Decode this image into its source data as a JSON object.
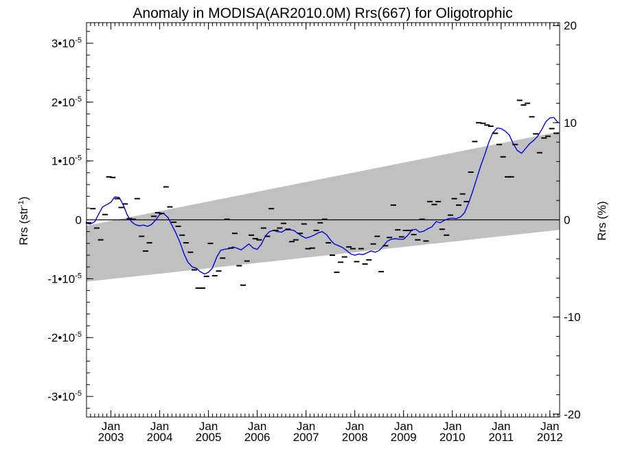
{
  "chart_data": {
    "type": "scatter",
    "title": "Anomaly in MODISA(AR2010.0M) Rrs(667) for Oligotrophic",
    "ylabel_left": {
      "main": "Rrs (str",
      "sup": "-1",
      "close": ")"
    },
    "ylabel_right": "Rrs (%)",
    "left_axis": {
      "ylim": [
        -3.35e-05,
        3.35e-05
      ],
      "ticks": [
        {
          "value": -3e-05,
          "mant": "-3",
          "exp": "-5"
        },
        {
          "value": -2e-05,
          "mant": "-2",
          "exp": "-5"
        },
        {
          "value": -1e-05,
          "mant": "-1",
          "exp": "-5"
        },
        {
          "value": 0,
          "label": "0"
        },
        {
          "value": 1e-05,
          "mant": "1",
          "exp": "-5"
        },
        {
          "value": 2e-05,
          "mant": "2",
          "exp": "-5"
        },
        {
          "value": 3e-05,
          "mant": "3",
          "exp": "-5"
        }
      ]
    },
    "right_axis": {
      "ylim": [
        -20.3,
        20.3
      ],
      "ticks": [
        {
          "value": -20,
          "label": "-20"
        },
        {
          "value": -10,
          "label": "-10"
        },
        {
          "value": 0,
          "label": "0"
        },
        {
          "value": 10,
          "label": "10"
        },
        {
          "value": 20,
          "label": "20"
        }
      ]
    },
    "xlim": [
      2002.5,
      2012.2
    ],
    "x_ticks": [
      {
        "value": 2003.0,
        "month": "Jan",
        "year": "2003"
      },
      {
        "value": 2004.0,
        "month": "Jan",
        "year": "2004"
      },
      {
        "value": 2005.0,
        "month": "Jan",
        "year": "2005"
      },
      {
        "value": 2006.0,
        "month": "Jan",
        "year": "2006"
      },
      {
        "value": 2007.0,
        "month": "Jan",
        "year": "2007"
      },
      {
        "value": 2008.0,
        "month": "Jan",
        "year": "2008"
      },
      {
        "value": 2009.0,
        "month": "Jan",
        "year": "2009"
      },
      {
        "value": 2010.0,
        "month": "Jan",
        "year": "2010"
      },
      {
        "value": 2011.0,
        "month": "Jan",
        "year": "2011"
      },
      {
        "value": 2012.0,
        "month": "Jan",
        "year": "2012"
      }
    ],
    "x_minor_step": 0.0833333,
    "zero_line": true,
    "band": {
      "color": "#c0c0c0",
      "x": [
        2002.5,
        2012.2
      ],
      "upper": [
        -1e-06,
        1.5e-05
      ],
      "lower": [
        -1.05e-05,
        -1.7e-06
      ]
    },
    "series": [
      {
        "kind": "markers",
        "color": "#000000",
        "x": [
          2002.54,
          2002.63,
          2002.71,
          2002.79,
          2002.88,
          2002.96,
          2003.04,
          2003.13,
          2003.21,
          2003.29,
          2003.38,
          2003.46,
          2003.54,
          2003.63,
          2003.71,
          2003.79,
          2003.88,
          2003.96,
          2004.04,
          2004.13,
          2004.21,
          2004.29,
          2004.38,
          2004.46,
          2004.54,
          2004.63,
          2004.71,
          2004.79,
          2004.88,
          2004.96,
          2005.04,
          2005.13,
          2005.21,
          2005.29,
          2005.38,
          2005.46,
          2005.54,
          2005.63,
          2005.71,
          2005.79,
          2005.88,
          2005.96,
          2006.04,
          2006.13,
          2006.21,
          2006.29,
          2006.38,
          2006.46,
          2006.54,
          2006.63,
          2006.71,
          2006.79,
          2006.88,
          2006.96,
          2007.04,
          2007.13,
          2007.21,
          2007.29,
          2007.38,
          2007.46,
          2007.54,
          2007.63,
          2007.71,
          2007.79,
          2007.88,
          2007.96,
          2008.04,
          2008.13,
          2008.21,
          2008.29,
          2008.38,
          2008.46,
          2008.54,
          2008.63,
          2008.71,
          2008.79,
          2008.88,
          2008.96,
          2009.04,
          2009.13,
          2009.21,
          2009.29,
          2009.38,
          2009.46,
          2009.54,
          2009.63,
          2009.71,
          2009.79,
          2009.88,
          2009.96,
          2010.04,
          2010.13,
          2010.21,
          2010.29,
          2010.38,
          2010.46,
          2010.54,
          2010.63,
          2010.71,
          2010.79,
          2010.88,
          2010.96,
          2011.04,
          2011.13,
          2011.21,
          2011.29,
          2011.38,
          2011.46,
          2011.54,
          2011.63,
          2011.71,
          2011.79,
          2011.88,
          2011.96,
          2012.04,
          2012.13
        ],
        "y": [
          -5e-07,
          1.9e-06,
          -1.4e-06,
          -3.4e-06,
          9e-07,
          7.3e-06,
          7.2e-06,
          3.6e-06,
          2.1e-06,
          2.7e-06,
          2e-07,
          1e-07,
          3.6e-06,
          -2.8e-06,
          -5.3e-06,
          -3.9e-06,
          6e-07,
          1.2e-06,
          1.1e-06,
          5.6e-06,
          2.2e-06,
          -4e-07,
          -1.1e-06,
          -2.6e-06,
          -3.9e-06,
          -5.5e-06,
          -8.5e-06,
          -1.16e-05,
          -1.16e-05,
          -9.6e-06,
          -4e-06,
          -9.5e-06,
          -8.7e-06,
          -6.5e-06,
          1e-07,
          -4.8e-06,
          -2.3e-06,
          -7.8e-06,
          -1.11e-05,
          -7e-06,
          -2.6e-06,
          -3.2e-06,
          -3.4e-06,
          -1.4e-06,
          -2.8e-06,
          1.9e-06,
          -1.8e-06,
          -1.4e-06,
          -6e-07,
          -1.6e-06,
          -3.7e-06,
          -3.4e-06,
          -2.3e-06,
          -7e-07,
          -4.9e-06,
          -4.8e-06,
          -1.8e-06,
          -5e-07,
          1e-07,
          -3.9e-06,
          -6e-06,
          -8.9e-06,
          -7.2e-06,
          -6.3e-06,
          -4.6e-06,
          -4.9e-06,
          -7.1e-06,
          -4.9e-06,
          -7.5e-06,
          -6.8e-06,
          -4.1e-06,
          -2.8e-06,
          -8.8e-06,
          -4.4e-06,
          -3e-06,
          2.5e-06,
          -1.7e-06,
          -2.9e-06,
          -1.8e-06,
          -1.8e-06,
          -2.5e-06,
          -3.4e-06,
          1e-07,
          -3.6e-06,
          3.1e-06,
          2.6e-06,
          3.1e-06,
          -1.6e-06,
          -2.6e-06,
          8e-07,
          3.6e-06,
          2.5e-06,
          4.4e-06,
          3.1e-06,
          8.1e-06,
          1.33e-05,
          1.65e-05,
          1.64e-05,
          1.61e-05,
          1.59e-05,
          1.47e-05,
          1.28e-05,
          1.07e-05,
          7.3e-06,
          7.3e-06,
          1.28e-05,
          2.03e-05,
          1.95e-05,
          1.98e-05,
          1.75e-05,
          1.46e-05,
          1.14e-05,
          1.39e-05,
          1.42e-05,
          1.55e-05,
          1.47e-05
        ]
      },
      {
        "kind": "line",
        "color": "#0000dd",
        "x": [
          2002.5,
          2002.58,
          2002.67,
          2002.75,
          2002.83,
          2002.92,
          2003.0,
          2003.08,
          2003.17,
          2003.25,
          2003.33,
          2003.42,
          2003.5,
          2003.58,
          2003.67,
          2003.75,
          2003.83,
          2003.92,
          2004.0,
          2004.08,
          2004.17,
          2004.25,
          2004.33,
          2004.42,
          2004.5,
          2004.58,
          2004.67,
          2004.75,
          2004.83,
          2004.92,
          2005.0,
          2005.08,
          2005.17,
          2005.25,
          2005.33,
          2005.42,
          2005.5,
          2005.58,
          2005.67,
          2005.75,
          2005.83,
          2005.92,
          2006.0,
          2006.08,
          2006.17,
          2006.25,
          2006.33,
          2006.42,
          2006.5,
          2006.58,
          2006.67,
          2006.75,
          2006.83,
          2006.92,
          2007.0,
          2007.08,
          2007.17,
          2007.25,
          2007.33,
          2007.42,
          2007.5,
          2007.58,
          2007.67,
          2007.75,
          2007.83,
          2007.92,
          2008.0,
          2008.08,
          2008.17,
          2008.25,
          2008.33,
          2008.42,
          2008.5,
          2008.58,
          2008.67,
          2008.75,
          2008.83,
          2008.92,
          2009.0,
          2009.08,
          2009.17,
          2009.25,
          2009.33,
          2009.42,
          2009.5,
          2009.58,
          2009.67,
          2009.75,
          2009.83,
          2009.92,
          2010.0,
          2010.08,
          2010.17,
          2010.25,
          2010.33,
          2010.42,
          2010.5,
          2010.58,
          2010.67,
          2010.75,
          2010.83,
          2010.92,
          2011.0,
          2011.08,
          2011.17,
          2011.25,
          2011.33,
          2011.42,
          2011.5,
          2011.58,
          2011.67,
          2011.75,
          2011.83,
          2011.92,
          2012.0,
          2012.08,
          2012.17
        ],
        "y": [
          -6e-07,
          -7e-07,
          -3e-07,
          1e-06,
          2.2e-06,
          2.6e-06,
          3e-06,
          3.9e-06,
          3.8e-06,
          2.6e-06,
          9e-07,
          -3e-07,
          -8e-07,
          -1e-06,
          -9e-07,
          -1.1e-06,
          -8e-07,
          0.0,
          9e-07,
          1.1e-06,
          4e-07,
          -9e-07,
          -2.2e-06,
          -3.9e-06,
          -5.8e-06,
          -7.2e-06,
          -8e-06,
          -8.2e-06,
          -8.8e-06,
          -9.2e-06,
          -8.9e-06,
          -8.2e-06,
          -6.3e-06,
          -5.2e-06,
          -5e-06,
          -4.9e-06,
          -4.6e-06,
          -4.8e-06,
          -5.1e-06,
          -4.6e-06,
          -4.1e-06,
          -4.8e-06,
          -5e-06,
          -4.2e-06,
          -2.7e-06,
          -2e-06,
          -1.8e-06,
          -2e-06,
          -2.1e-06,
          -1.7e-06,
          -1.7e-06,
          -1.8e-06,
          -2.3e-06,
          -2.8e-06,
          -3.1e-06,
          -2.9e-06,
          -2.6e-06,
          -2.2e-06,
          -2e-06,
          -2.5e-06,
          -3.4e-06,
          -4.1e-06,
          -4.4e-06,
          -4.7e-06,
          -5.2e-06,
          -5.8e-06,
          -6e-06,
          -5.8e-06,
          -5.9e-06,
          -5.6e-06,
          -5.3e-06,
          -5.5e-06,
          -5.2e-06,
          -4.5e-06,
          -3.6e-06,
          -3.3e-06,
          -3.2e-06,
          -3.3e-06,
          -3.3e-06,
          -2.7e-06,
          -1.7e-06,
          -1.6e-06,
          -2.1e-06,
          -1.9e-06,
          -1.5e-06,
          -1.2e-06,
          -3e-07,
          -5e-07,
          -1e-07,
          2e-07,
          3e-07,
          2e-07,
          5e-07,
          1.2e-06,
          2.8e-06,
          4.9e-06,
          7e-06,
          9.1e-06,
          1.12e-05,
          1.32e-05,
          1.48e-05,
          1.56e-05,
          1.55e-05,
          1.51e-05,
          1.44e-05,
          1.29e-05,
          1.18e-05,
          1.13e-05,
          1.21e-05,
          1.29e-05,
          1.35e-05,
          1.42e-05,
          1.53e-05,
          1.67e-05,
          1.73e-05,
          1.74e-05,
          1.65e-05
        ]
      }
    ],
    "grid": false,
    "legend": "none"
  }
}
